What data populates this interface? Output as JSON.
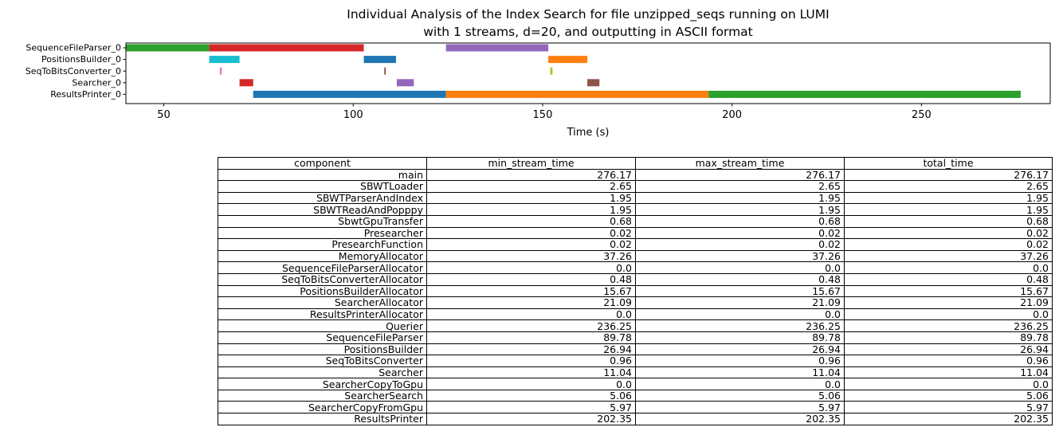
{
  "chart_data": [
    {
      "type": "gantt",
      "title": "Individual Analysis of the Index Search for file unzipped_seqs running on LUMI",
      "subtitle": "with 1 streams, d=20, and outputting in ASCII format",
      "xlabel": "Time (s)",
      "xlim": [
        40,
        284
      ],
      "xticks": [
        50,
        100,
        150,
        200,
        250
      ],
      "categories": [
        "SequenceFileParser_0",
        "PositionsBuilder_0",
        "SeqToBitsConverter_0",
        "Searcher_0",
        "ResultsPrinter_0"
      ],
      "bars": [
        {
          "row": 0,
          "start": 40.0,
          "end": 62.0,
          "color": "#2ca02c"
        },
        {
          "row": 0,
          "start": 62.0,
          "end": 102.8,
          "color": "#d62728"
        },
        {
          "row": 0,
          "start": 124.5,
          "end": 151.5,
          "color": "#9467bd"
        },
        {
          "row": 1,
          "start": 62.0,
          "end": 70.0,
          "color": "#17becf"
        },
        {
          "row": 1,
          "start": 102.8,
          "end": 111.3,
          "color": "#1f77b4"
        },
        {
          "row": 1,
          "start": 151.5,
          "end": 161.8,
          "color": "#ff7f0e"
        },
        {
          "row": 2,
          "start": 64.8,
          "end": 65.3,
          "color": "#e377c2"
        },
        {
          "row": 2,
          "start": 108.2,
          "end": 108.6,
          "color": "#8c564b"
        },
        {
          "row": 2,
          "start": 152.0,
          "end": 152.6,
          "color": "#bcbd22"
        },
        {
          "row": 3,
          "start": 70.0,
          "end": 73.6,
          "color": "#d62728"
        },
        {
          "row": 3,
          "start": 111.5,
          "end": 116.0,
          "color": "#9467bd"
        },
        {
          "row": 3,
          "start": 161.8,
          "end": 165.0,
          "color": "#8c564b"
        },
        {
          "row": 4,
          "start": 73.6,
          "end": 124.5,
          "color": "#1f77b4"
        },
        {
          "row": 4,
          "start": 124.5,
          "end": 193.8,
          "color": "#ff7f0e"
        },
        {
          "row": 4,
          "start": 193.8,
          "end": 276.2,
          "color": "#2ca02c"
        }
      ]
    },
    {
      "type": "table",
      "columns": [
        "component",
        "min_stream_time",
        "max_stream_time",
        "total_time"
      ],
      "rows": [
        [
          "main",
          "276.17",
          "276.17",
          "276.17"
        ],
        [
          "SBWTLoader",
          "2.65",
          "2.65",
          "2.65"
        ],
        [
          "SBWTParserAndIndex",
          "1.95",
          "1.95",
          "1.95"
        ],
        [
          "SBWTReadAndPopppy",
          "1.95",
          "1.95",
          "1.95"
        ],
        [
          "SbwtGpuTransfer",
          "0.68",
          "0.68",
          "0.68"
        ],
        [
          "Presearcher",
          "0.02",
          "0.02",
          "0.02"
        ],
        [
          "PresearchFunction",
          "0.02",
          "0.02",
          "0.02"
        ],
        [
          "MemoryAllocator",
          "37.26",
          "37.26",
          "37.26"
        ],
        [
          "SequenceFileParserAllocator",
          "0.0",
          "0.0",
          "0.0"
        ],
        [
          "SeqToBitsConverterAllocator",
          "0.48",
          "0.48",
          "0.48"
        ],
        [
          "PositionsBuilderAllocator",
          "15.67",
          "15.67",
          "15.67"
        ],
        [
          "SearcherAllocator",
          "21.09",
          "21.09",
          "21.09"
        ],
        [
          "ResultsPrinterAllocator",
          "0.0",
          "0.0",
          "0.0"
        ],
        [
          "Querier",
          "236.25",
          "236.25",
          "236.25"
        ],
        [
          "SequenceFileParser",
          "89.78",
          "89.78",
          "89.78"
        ],
        [
          "PositionsBuilder",
          "26.94",
          "26.94",
          "26.94"
        ],
        [
          "SeqToBitsConverter",
          "0.96",
          "0.96",
          "0.96"
        ],
        [
          "Searcher",
          "11.04",
          "11.04",
          "11.04"
        ],
        [
          "SearcherCopyToGpu",
          "0.0",
          "0.0",
          "0.0"
        ],
        [
          "SearcherSearch",
          "5.06",
          "5.06",
          "5.06"
        ],
        [
          "SearcherCopyFromGpu",
          "5.97",
          "5.97",
          "5.97"
        ],
        [
          "ResultsPrinter",
          "202.35",
          "202.35",
          "202.35"
        ]
      ]
    }
  ]
}
